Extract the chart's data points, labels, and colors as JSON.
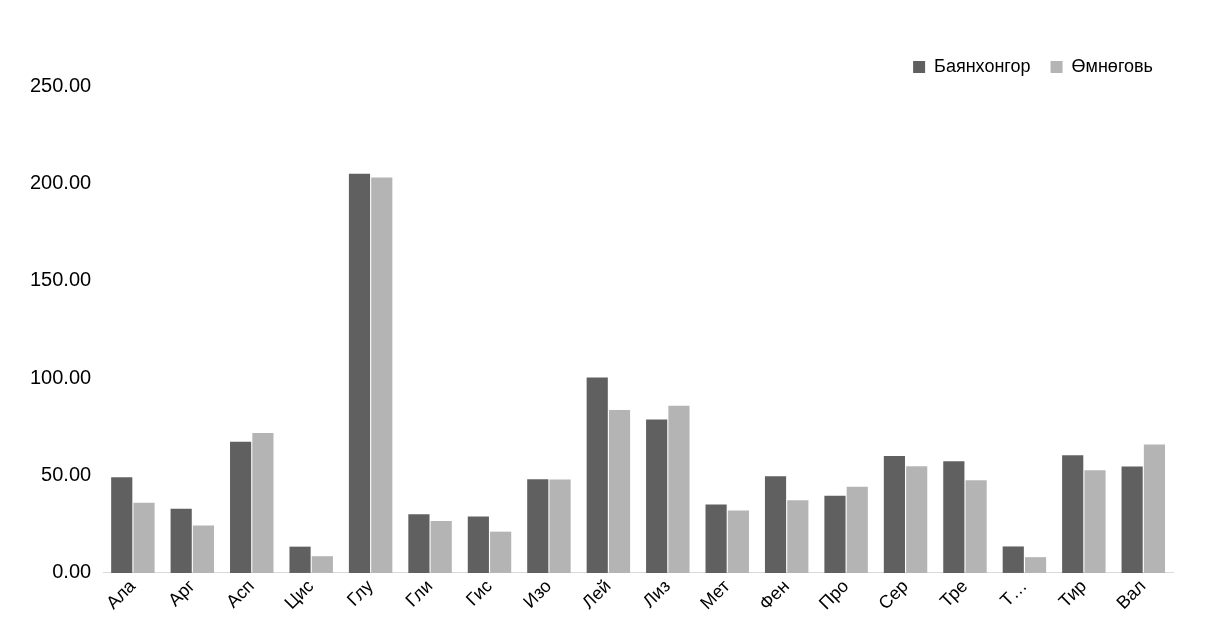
{
  "chart_data": {
    "type": "bar",
    "categories": [
      "Ала",
      "Арг",
      "Асп",
      "Цис",
      "Глу",
      "Гли",
      "Гис",
      "Изо",
      "Лей",
      "Лиз",
      "Мет",
      "Фен",
      "Про",
      "Сер",
      "Тре",
      "Т…",
      "Тир",
      "Вал"
    ],
    "series": [
      {
        "name": "Баянхонгор",
        "color": "#606060",
        "values": [
          49.1,
          33,
          67.3,
          13.5,
          205,
          30.1,
          29,
          48.1,
          100.4,
          78.8,
          35.2,
          49.6,
          39.6,
          60,
          57.3,
          13.6,
          60.4,
          54.7
        ]
      },
      {
        "name": "Өмнөговь",
        "color": "#b4b4b4",
        "values": [
          36,
          24.4,
          71.8,
          8.6,
          203,
          26.7,
          21.2,
          48,
          83.6,
          85.9,
          32,
          37.3,
          44.2,
          54.8,
          47.6,
          8.1,
          52.7,
          65.9
        ]
      }
    ],
    "ylim": [
      0,
      250
    ],
    "yticks": [
      {
        "value": 0,
        "label": "0.00"
      },
      {
        "value": 50,
        "label": "50.00"
      },
      {
        "value": 100,
        "label": "100.00"
      },
      {
        "value": 150,
        "label": "150.00"
      },
      {
        "value": 200,
        "label": "200.00"
      },
      {
        "value": 250,
        "label": "250.00"
      }
    ],
    "grid": false,
    "legend": "top right"
  }
}
